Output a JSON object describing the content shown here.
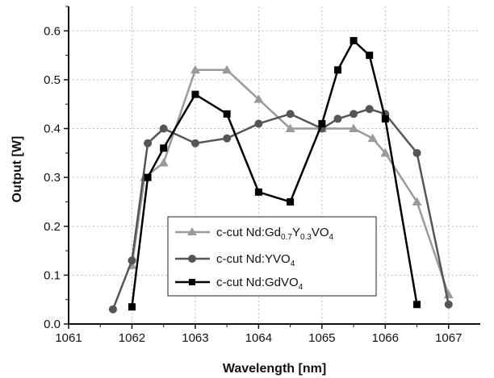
{
  "chart_data": {
    "type": "line",
    "xlabel": "Wavelength  [nm]",
    "ylabel": "Output [W]",
    "xlim": [
      1061,
      1067.5
    ],
    "ylim": [
      0.0,
      0.65
    ],
    "xticks": [
      "1061",
      "1062",
      "1063",
      "1064",
      "1065",
      "1066",
      "1067"
    ],
    "yticks": [
      "0.0",
      "0.1",
      "0.2",
      "0.3",
      "0.4",
      "0.5",
      "0.6"
    ],
    "grid": true,
    "legend_position": "lower-center",
    "series": [
      {
        "name": "c-cut Nd:Gd0.7Y0.3VO4",
        "marker": "triangle",
        "color": "#9a9a9a",
        "x": [
          1062.0,
          1062.2,
          1062.5,
          1063.0,
          1063.5,
          1064.0,
          1064.5,
          1065.0,
          1065.5,
          1065.8,
          1066.0,
          1066.5,
          1067.0
        ],
        "y": [
          0.12,
          0.3,
          0.33,
          0.52,
          0.52,
          0.46,
          0.4,
          0.4,
          0.4,
          0.38,
          0.35,
          0.25,
          0.06
        ]
      },
      {
        "name": "c-cut Nd:YVO4",
        "marker": "circle",
        "color": "#555555",
        "x": [
          1061.7,
          1062.0,
          1062.25,
          1062.5,
          1063.0,
          1063.5,
          1064.0,
          1064.5,
          1065.0,
          1065.25,
          1065.5,
          1065.75,
          1066.0,
          1066.5,
          1067.0
        ],
        "y": [
          0.03,
          0.13,
          0.37,
          0.4,
          0.37,
          0.38,
          0.41,
          0.43,
          0.4,
          0.42,
          0.43,
          0.44,
          0.43,
          0.35,
          0.04
        ]
      },
      {
        "name": "c-cut Nd:GdVO4",
        "marker": "square",
        "color": "#000000",
        "x": [
          1062.0,
          1062.25,
          1062.5,
          1063.0,
          1063.5,
          1064.0,
          1064.5,
          1065.0,
          1065.25,
          1065.5,
          1065.75,
          1066.0,
          1066.5
        ],
        "y": [
          0.035,
          0.3,
          0.36,
          0.47,
          0.43,
          0.27,
          0.25,
          0.41,
          0.52,
          0.58,
          0.55,
          0.42,
          0.04
        ]
      }
    ]
  },
  "legend": {
    "entry1": {
      "prefix": "c-cut Nd:Gd",
      "sub1": "0.7",
      "mid": "Y",
      "sub2": "0.3",
      "suffix": "VO",
      "sub3": "4"
    },
    "entry2": {
      "prefix": "c-cut Nd:YVO",
      "sub": "4"
    },
    "entry3": {
      "prefix": "c-cut Nd:GdVO",
      "sub": "4"
    }
  }
}
